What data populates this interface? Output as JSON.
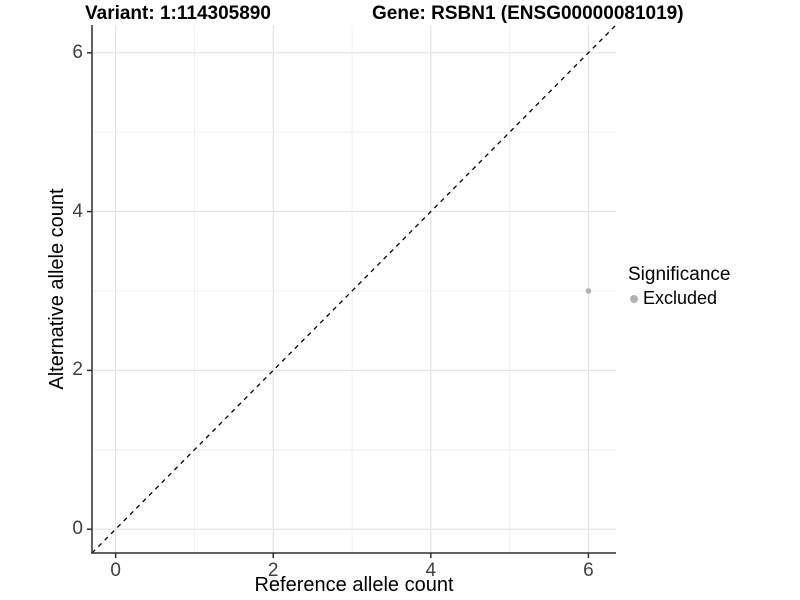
{
  "chart_data": {
    "type": "scatter",
    "title_left": "Variant: 1:114305890",
    "title_right": "Gene: RSBN1 (ENSG00000081019)",
    "xlabel": "Reference allele count",
    "ylabel": "Alternative allele count",
    "xlim": [
      -0.3,
      6.35
    ],
    "ylim": [
      -0.3,
      6.35
    ],
    "xticks": [
      0,
      2,
      4,
      6
    ],
    "yticks": [
      0,
      2,
      4,
      6
    ],
    "xminor": [
      1,
      3,
      5
    ],
    "yminor": [
      1,
      3,
      5
    ],
    "grid": "major+minor",
    "identity_line": {
      "style": "dashed",
      "from": [
        -0.3,
        -0.3
      ],
      "to": [
        6.35,
        6.35
      ],
      "color": "#000000"
    },
    "series": [
      {
        "name": "Excluded",
        "color": "#b2b2b2",
        "points": [
          {
            "x": 6,
            "y": 3
          }
        ]
      }
    ],
    "legend": {
      "title": "Significance",
      "position": "right",
      "items": [
        {
          "label": "Excluded",
          "color": "#b2b2b2"
        }
      ]
    },
    "colors": {
      "axis_line": "#2f2f2f",
      "tick_text": "#404040",
      "grid_major": "#e4e4e4",
      "grid_minor": "#efefef",
      "panel_background": "#ffffff"
    }
  }
}
